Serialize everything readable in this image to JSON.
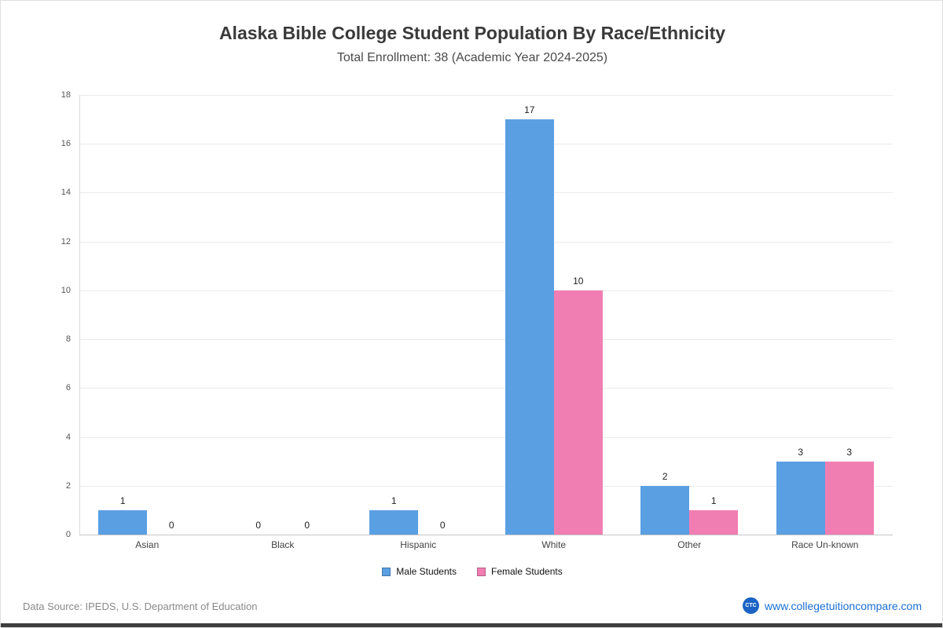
{
  "header": {
    "title": "Alaska Bible College Student Population By Race/Ethnicity",
    "subtitle": "Total Enrollment: 38 (Academic Year 2024-2025)"
  },
  "chart_data": {
    "type": "bar",
    "categories": [
      "Asian",
      "Black",
      "Hispanic",
      "White",
      "Other",
      "Race Un-known"
    ],
    "series": [
      {
        "name": "Male Students",
        "color": "#5b9fe3",
        "values": [
          1,
          0,
          1,
          17,
          2,
          3
        ]
      },
      {
        "name": "Female Students",
        "color": "#f07eb2",
        "values": [
          0,
          0,
          0,
          10,
          1,
          3
        ]
      }
    ],
    "title": "Alaska Bible College Student Population By Race/Ethnicity",
    "xlabel": "",
    "ylabel": "",
    "ylim": [
      0,
      18
    ],
    "ytick_step": 2,
    "grid": true,
    "legend_position": "bottom"
  },
  "footer": {
    "source": "Data Source: IPEDS, U.S. Department of Education",
    "logo": "CTC",
    "website": "www.collegetuitioncompare.com"
  }
}
